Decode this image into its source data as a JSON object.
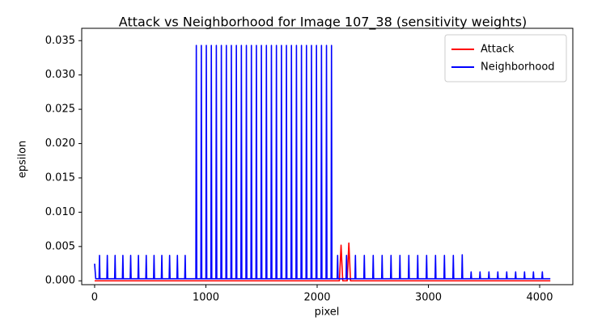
{
  "chart_data": {
    "type": "line",
    "title": "Attack vs Neighborhood for Image 107_38 (sensitivity weights)",
    "x_label": "pixel",
    "y_label": "epsilon",
    "xlim": [
      -116,
      4298
    ],
    "ylim": [
      -0.00056,
      0.0368
    ],
    "xticks": [
      0,
      1000,
      2000,
      3000,
      4000
    ],
    "yticks": [
      {
        "value": 0,
        "label": "0.000"
      },
      {
        "value": 0.005,
        "label": "0.005"
      },
      {
        "value": 0.01,
        "label": "0.010"
      },
      {
        "value": 0.015,
        "label": "0.015"
      },
      {
        "value": 0.02,
        "label": "0.020"
      },
      {
        "value": 0.025,
        "label": "0.025"
      },
      {
        "value": 0.03,
        "label": "0.030"
      },
      {
        "value": 0.035,
        "label": "0.035"
      }
    ],
    "grid": false,
    "legend": "upper right",
    "series": [
      {
        "name": "Attack",
        "color": "#ff0000",
        "x": [
          0,
          2200,
          2215,
          2230,
          2250,
          2270,
          2285,
          2300,
          4096
        ],
        "values": [
          0,
          0,
          0.0052,
          0,
          0,
          0,
          0.0055,
          0,
          0
        ]
      },
      {
        "name": "Neighborhood",
        "color": "#0000ff",
        "x": [
          0,
          10,
          40,
          44,
          48,
          110,
          114,
          118,
          180,
          184,
          188,
          250,
          254,
          258,
          320,
          324,
          328,
          390,
          394,
          398,
          460,
          464,
          468,
          530,
          534,
          538,
          600,
          604,
          608,
          670,
          674,
          678,
          740,
          744,
          748,
          810,
          814,
          818,
          910,
          914,
          918,
          955,
          959,
          963,
          1000,
          1004,
          1008,
          1045,
          1049,
          1053,
          1090,
          1094,
          1098,
          1135,
          1139,
          1143,
          1180,
          1184,
          1188,
          1225,
          1229,
          1233,
          1270,
          1274,
          1278,
          1315,
          1319,
          1323,
          1360,
          1364,
          1368,
          1405,
          1409,
          1413,
          1450,
          1454,
          1458,
          1495,
          1499,
          1503,
          1540,
          1544,
          1548,
          1585,
          1589,
          1593,
          1630,
          1634,
          1638,
          1675,
          1679,
          1683,
          1720,
          1724,
          1728,
          1765,
          1769,
          1773,
          1810,
          1814,
          1818,
          1855,
          1859,
          1863,
          1900,
          1904,
          1908,
          1945,
          1949,
          1953,
          1990,
          1994,
          1998,
          2035,
          2039,
          2043,
          2080,
          2084,
          2088,
          2125,
          2129,
          2133,
          2180,
          2184,
          2188,
          2260,
          2264,
          2268,
          2340,
          2344,
          2348,
          2420,
          2424,
          2428,
          2500,
          2504,
          2508,
          2580,
          2584,
          2588,
          2660,
          2664,
          2668,
          2740,
          2744,
          2748,
          2820,
          2824,
          2828,
          2900,
          2904,
          2908,
          2980,
          2984,
          2988,
          3060,
          3064,
          3068,
          3140,
          3144,
          3148,
          3220,
          3224,
          3228,
          3300,
          3304,
          3308,
          3380,
          3384,
          3388,
          3460,
          3464,
          3468,
          3540,
          3544,
          3548,
          3620,
          3624,
          3628,
          3700,
          3704,
          3708,
          3780,
          3784,
          3788,
          3860,
          3864,
          3868,
          3940,
          3944,
          3948,
          4020,
          4024,
          4028,
          4096
        ],
        "values": [
          0.0025,
          0.0003,
          0.0003,
          0.0037,
          0.0003,
          0.0003,
          0.0037,
          0.0003,
          0.0003,
          0.0037,
          0.0003,
          0.0003,
          0.0037,
          0.0003,
          0.0003,
          0.0037,
          0.0003,
          0.0003,
          0.0037,
          0.0003,
          0.0003,
          0.0037,
          0.0003,
          0.0003,
          0.0037,
          0.0003,
          0.0003,
          0.0037,
          0.0003,
          0.0003,
          0.0037,
          0.0003,
          0.0003,
          0.0037,
          0.0003,
          0.0003,
          0.0037,
          0.0003,
          0.0003,
          0.0343,
          0.0003,
          0.0003,
          0.0343,
          0.0003,
          0.0003,
          0.0343,
          0.0003,
          0.0003,
          0.0343,
          0.0003,
          0.0003,
          0.0343,
          0.0003,
          0.0003,
          0.0343,
          0.0003,
          0.0003,
          0.0343,
          0.0003,
          0.0003,
          0.0343,
          0.0003,
          0.0003,
          0.0343,
          0.0003,
          0.0003,
          0.0343,
          0.0003,
          0.0003,
          0.0343,
          0.0003,
          0.0003,
          0.0343,
          0.0003,
          0.0003,
          0.0343,
          0.0003,
          0.0003,
          0.0343,
          0.0003,
          0.0003,
          0.0343,
          0.0003,
          0.0003,
          0.0343,
          0.0003,
          0.0003,
          0.0343,
          0.0003,
          0.0003,
          0.0343,
          0.0003,
          0.0003,
          0.0343,
          0.0003,
          0.0003,
          0.0343,
          0.0003,
          0.0003,
          0.0343,
          0.0003,
          0.0003,
          0.0343,
          0.0003,
          0.0003,
          0.0343,
          0.0003,
          0.0003,
          0.0343,
          0.0003,
          0.0003,
          0.0343,
          0.0003,
          0.0003,
          0.0343,
          0.0003,
          0.0003,
          0.0343,
          0.0003,
          0.0003,
          0.0343,
          0.0003,
          0.0003,
          0.0037,
          0.0003,
          0.0003,
          0.0037,
          0.0003,
          0.0003,
          0.0037,
          0.0003,
          0.0003,
          0.0037,
          0.0003,
          0.0003,
          0.0037,
          0.0003,
          0.0003,
          0.0037,
          0.0003,
          0.0003,
          0.0037,
          0.0003,
          0.0003,
          0.0037,
          0.0003,
          0.0003,
          0.0037,
          0.0003,
          0.0003,
          0.0037,
          0.0003,
          0.0003,
          0.0037,
          0.0003,
          0.0003,
          0.0037,
          0.0003,
          0.0003,
          0.0037,
          0.0003,
          0.0003,
          0.0037,
          0.0003,
          0.0003,
          0.0038,
          0.0003,
          0.0003,
          0.0013,
          0.0003,
          0.0003,
          0.0013,
          0.0003,
          0.0003,
          0.0013,
          0.0003,
          0.0003,
          0.0013,
          0.0003,
          0.0003,
          0.0013,
          0.0003,
          0.0003,
          0.0013,
          0.0003,
          0.0003,
          0.0013,
          0.0003,
          0.0003,
          0.0013,
          0.0003,
          0.0003,
          0.0013,
          0.0003,
          0.0003
        ]
      }
    ]
  }
}
